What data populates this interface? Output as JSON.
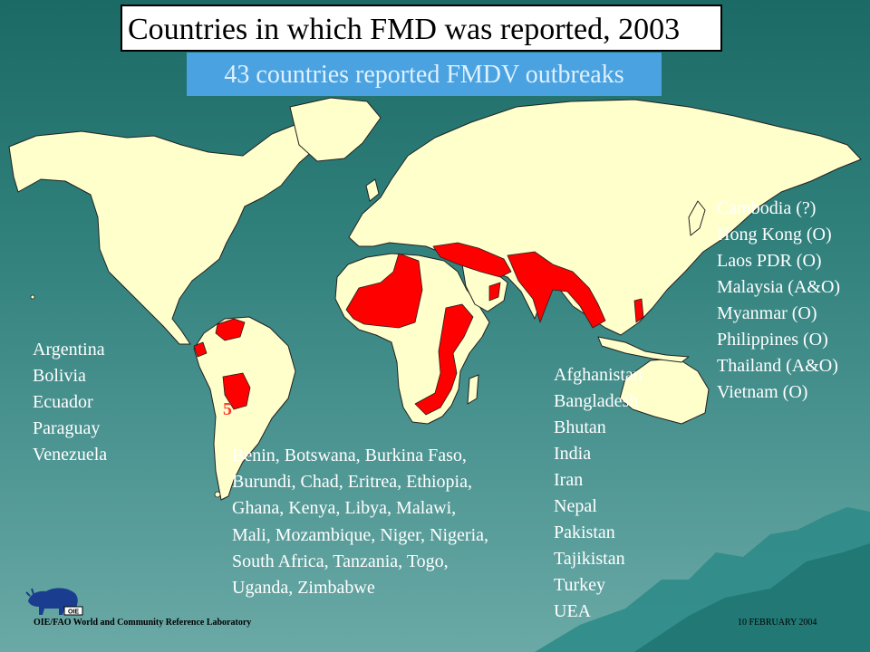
{
  "title": "Countries in which FMD was reported, 2003",
  "subtitle": "43 countries reported FMDV outbreaks",
  "colors": {
    "land": "#ffffcc",
    "affected": "#ff0000",
    "ocean_top": "#1c6a66",
    "ocean_bottom": "#6aa9a6",
    "subtitle_bg": "#4aa3e0"
  },
  "south_america_countries": [
    "Argentina",
    "Bolivia",
    "Ecuador",
    "Paraguay",
    "Venezuela"
  ],
  "africa_countries": "Benin, Botswana, Burkina Faso,\nBurundi, Chad, Eritrea, Ethiopia,\nGhana, Kenya, Libya, Malawi,\nMali, Mozambique, Niger, Nigeria,\nSouth Africa, Tanzania, Togo,\nUganda, Zimbabwe",
  "asia_countries": [
    "Afghanistan",
    "Bangladesh",
    "Bhutan",
    "India",
    "Iran",
    "Nepal",
    "Pakistan",
    "Tajikistan",
    "Turkey",
    "UEA"
  ],
  "se_asia_countries": [
    "Cambodia (?)",
    "Hong Kong (O)",
    "Laos PDR (O)",
    "Malaysia (A&O)",
    "Myanmar (O)",
    "Philippines (O)",
    "Thailand (A&O)",
    "Vietnam (O)"
  ],
  "map_marker": "5",
  "logo_label": "OIE",
  "footer": "OIE/FAO World and Community Reference Laboratory",
  "date": "10 FEBRUARY 2004"
}
